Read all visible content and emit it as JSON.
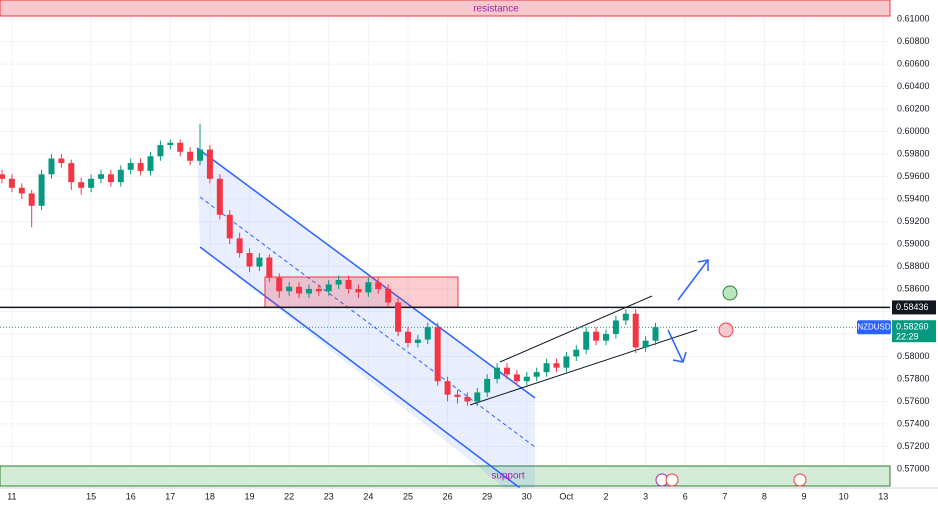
{
  "chart_data": {
    "type": "candlestick",
    "symbol": "NZDUSD",
    "last_price": {
      "value": 0.5826,
      "label": "0.58260"
    },
    "countdown": "22:29",
    "key_level": 0.58436,
    "annotations": {
      "resistance": "resistance",
      "support": "support"
    },
    "up_color": "#089981",
    "down_color": "#f23645",
    "grid": true,
    "xlim": [
      -0.3,
      22.17
    ],
    "ylim": [
      0.5683,
      0.6117
    ],
    "xticks": [
      {
        "value": 0,
        "label": "11"
      },
      {
        "value": 2,
        "label": "15"
      },
      {
        "value": 3,
        "label": "16"
      },
      {
        "value": 4,
        "label": "17"
      },
      {
        "value": 5,
        "label": "18"
      },
      {
        "value": 6,
        "label": "19"
      },
      {
        "value": 7,
        "label": "22"
      },
      {
        "value": 8,
        "label": "23"
      },
      {
        "value": 9,
        "label": "24"
      },
      {
        "value": 10,
        "label": "25"
      },
      {
        "value": 11,
        "label": "26"
      },
      {
        "value": 12,
        "label": "29"
      },
      {
        "value": 13,
        "label": "30"
      },
      {
        "value": 14,
        "label": "Oct"
      },
      {
        "value": 15,
        "label": "2"
      },
      {
        "value": 16,
        "label": "3"
      },
      {
        "value": 17,
        "label": "6"
      },
      {
        "value": 18,
        "label": "7"
      },
      {
        "value": 19,
        "label": "8"
      },
      {
        "value": 20,
        "label": "9"
      },
      {
        "value": 21,
        "label": "10"
      },
      {
        "value": 22,
        "label": "13"
      }
    ],
    "yticks": [
      {
        "value": 0.57,
        "label": "0.57000"
      },
      {
        "value": 0.572,
        "label": "0.57200"
      },
      {
        "value": 0.574,
        "label": "0.57400"
      },
      {
        "value": 0.576,
        "label": "0.57600"
      },
      {
        "value": 0.578,
        "label": "0.57800"
      },
      {
        "value": 0.58,
        "label": "0.58000"
      },
      {
        "value": 0.582,
        "label": "0.58200"
      },
      {
        "value": 0.584,
        "label": "0.58400"
      },
      {
        "value": 0.586,
        "label": "0.58600"
      },
      {
        "value": 0.588,
        "label": "0.58800"
      },
      {
        "value": 0.59,
        "label": "0.59000"
      },
      {
        "value": 0.592,
        "label": "0.59200"
      },
      {
        "value": 0.594,
        "label": "0.59400"
      },
      {
        "value": 0.596,
        "label": "0.59600"
      },
      {
        "value": 0.598,
        "label": "0.59800"
      },
      {
        "value": 0.6,
        "label": "0.60000"
      },
      {
        "value": 0.602,
        "label": "0.60200"
      },
      {
        "value": 0.604,
        "label": "0.60400"
      },
      {
        "value": 0.606,
        "label": "0.60600"
      },
      {
        "value": 0.608,
        "label": "0.60800"
      },
      {
        "value": 0.61,
        "label": "0.61000"
      }
    ],
    "x": [
      -0.25,
      0,
      0.25,
      0.5,
      0.75,
      1,
      1.25,
      1.5,
      1.75,
      2,
      2.25,
      2.5,
      2.75,
      3,
      3.25,
      3.5,
      3.75,
      4,
      4.25,
      4.5,
      4.75,
      5,
      5.25,
      5.5,
      5.75,
      6,
      6.25,
      6.5,
      6.75,
      7,
      7.25,
      7.5,
      7.75,
      8,
      8.25,
      8.5,
      8.75,
      9,
      9.25,
      9.5,
      9.75,
      10,
      10.25,
      10.5,
      10.75,
      11,
      11.25,
      11.5,
      11.75,
      12,
      12.25,
      12.5,
      12.75,
      13,
      13.25,
      13.5,
      13.75,
      14,
      14.25,
      14.5,
      14.75,
      15,
      15.25,
      15.5,
      15.75,
      16,
      16.25
    ],
    "open": [
      0.5962,
      0.5958,
      0.595,
      0.5945,
      0.5934,
      0.5962,
      0.5976,
      0.5972,
      0.5955,
      0.595,
      0.5958,
      0.5962,
      0.5955,
      0.5966,
      0.5972,
      0.5965,
      0.5978,
      0.5988,
      0.599,
      0.5982,
      0.5974,
      0.5984,
      0.5958,
      0.5926,
      0.5905,
      0.5892,
      0.588,
      0.5888,
      0.587,
      0.5858,
      0.5862,
      0.5856,
      0.586,
      0.5858,
      0.5864,
      0.5868,
      0.586,
      0.5857,
      0.5866,
      0.586,
      0.5848,
      0.5822,
      0.5812,
      0.5815,
      0.5826,
      0.5778,
      0.5766,
      0.5764,
      0.576,
      0.5768,
      0.578,
      0.579,
      0.5784,
      0.5778,
      0.5782,
      0.5786,
      0.5794,
      0.579,
      0.58,
      0.5806,
      0.5822,
      0.5814,
      0.582,
      0.5832,
      0.5838,
      0.5808,
      0.5814
    ],
    "high": [
      0.5966,
      0.5962,
      0.5954,
      0.5948,
      0.5966,
      0.598,
      0.598,
      0.5975,
      0.5959,
      0.5962,
      0.5966,
      0.5966,
      0.597,
      0.5976,
      0.5976,
      0.5982,
      0.5992,
      0.5993,
      0.5993,
      0.5986,
      0.6007,
      0.5988,
      0.5962,
      0.593,
      0.591,
      0.5896,
      0.5892,
      0.5891,
      0.5874,
      0.5866,
      0.5866,
      0.5864,
      0.5864,
      0.5868,
      0.5872,
      0.5872,
      0.5864,
      0.587,
      0.587,
      0.5864,
      0.5852,
      0.5826,
      0.5819,
      0.583,
      0.583,
      0.5782,
      0.577,
      0.5768,
      0.5772,
      0.5784,
      0.5794,
      0.5794,
      0.5788,
      0.5786,
      0.579,
      0.5798,
      0.5798,
      0.5804,
      0.581,
      0.5826,
      0.5826,
      0.5824,
      0.5836,
      0.5842,
      0.5842,
      0.5818,
      0.583
    ],
    "low": [
      0.5954,
      0.5946,
      0.594,
      0.5915,
      0.593,
      0.5958,
      0.5968,
      0.5948,
      0.5944,
      0.5946,
      0.5954,
      0.5951,
      0.5951,
      0.5962,
      0.5961,
      0.5961,
      0.5974,
      0.5984,
      0.5978,
      0.597,
      0.597,
      0.5954,
      0.5922,
      0.59,
      0.5888,
      0.5875,
      0.5876,
      0.5866,
      0.5852,
      0.5854,
      0.5852,
      0.5852,
      0.5854,
      0.5854,
      0.586,
      0.5856,
      0.5852,
      0.5853,
      0.5856,
      0.5844,
      0.5818,
      0.5808,
      0.5808,
      0.5811,
      0.5774,
      0.576,
      0.5758,
      0.5756,
      0.5756,
      0.5764,
      0.5776,
      0.578,
      0.5774,
      0.5774,
      0.5778,
      0.5782,
      0.5786,
      0.5786,
      0.5796,
      0.5802,
      0.581,
      0.581,
      0.5816,
      0.5828,
      0.5803,
      0.5804,
      0.581
    ],
    "close": [
      0.5958,
      0.595,
      0.5945,
      0.5934,
      0.5962,
      0.5976,
      0.5972,
      0.5955,
      0.595,
      0.5958,
      0.5962,
      0.5955,
      0.5966,
      0.5972,
      0.5965,
      0.5978,
      0.5988,
      0.599,
      0.5982,
      0.5974,
      0.5984,
      0.5958,
      0.5926,
      0.5905,
      0.5892,
      0.588,
      0.5888,
      0.587,
      0.5858,
      0.5862,
      0.5856,
      0.586,
      0.5858,
      0.5864,
      0.5868,
      0.586,
      0.5857,
      0.5866,
      0.586,
      0.5848,
      0.5822,
      0.5812,
      0.5815,
      0.5826,
      0.5778,
      0.5766,
      0.5764,
      0.576,
      0.5768,
      0.578,
      0.579,
      0.5784,
      0.5778,
      0.5782,
      0.5786,
      0.5794,
      0.579,
      0.58,
      0.5806,
      0.5822,
      0.5814,
      0.582,
      0.5832,
      0.5838,
      0.5808,
      0.5814,
      0.5826
    ]
  }
}
